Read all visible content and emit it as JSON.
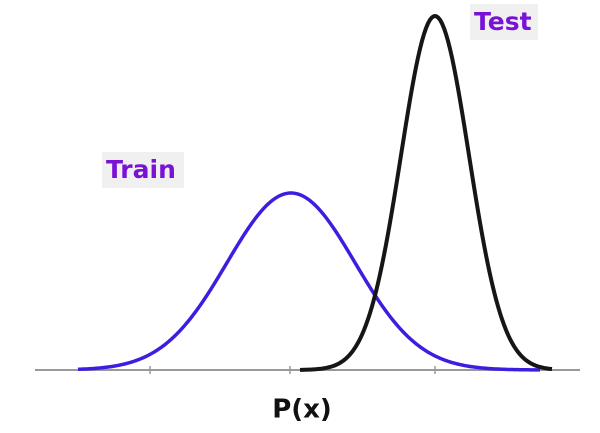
{
  "labels": {
    "train": "Train",
    "test": "Test",
    "axis": "P(x)"
  }
}
